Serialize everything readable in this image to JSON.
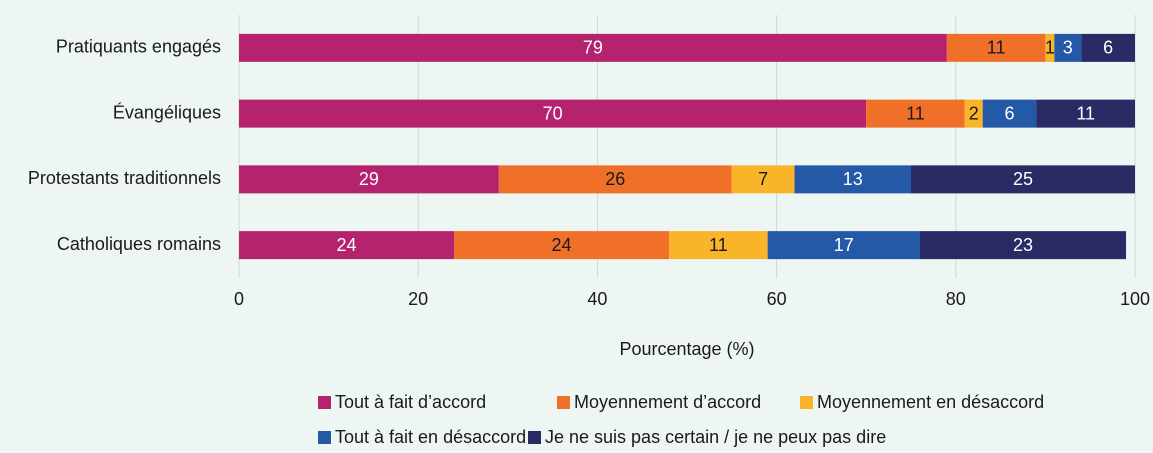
{
  "chart_data": {
    "type": "stacked_barh",
    "categories": [
      "Pratiquants engagés",
      "Évangéliques",
      "Protestants traditionnels",
      "Catholiques romains"
    ],
    "series": [
      {
        "name": "Tout à fait d’accord",
        "color": "#b5236f",
        "values": [
          79,
          70,
          29,
          24
        ]
      },
      {
        "name": "Moyennement d’accord",
        "color": "#f0702a",
        "values": [
          11,
          11,
          26,
          24
        ]
      },
      {
        "name": "Moyennement en désaccord",
        "color": "#f9b42a",
        "values": [
          1,
          2,
          7,
          11
        ]
      },
      {
        "name": "Tout à fait en désaccord",
        "color": "#2359a6",
        "values": [
          3,
          6,
          13,
          17
        ]
      },
      {
        "name": "Je ne suis pas certain / je ne peux pas dire",
        "color": "#2a2a64",
        "values": [
          6,
          11,
          25,
          23
        ]
      }
    ],
    "xlabel": "Pourcentage (%)",
    "xlim": [
      0,
      100
    ],
    "xticks": [
      0,
      20,
      40,
      60,
      80,
      100
    ],
    "grid": true,
    "legend": "bottom"
  }
}
